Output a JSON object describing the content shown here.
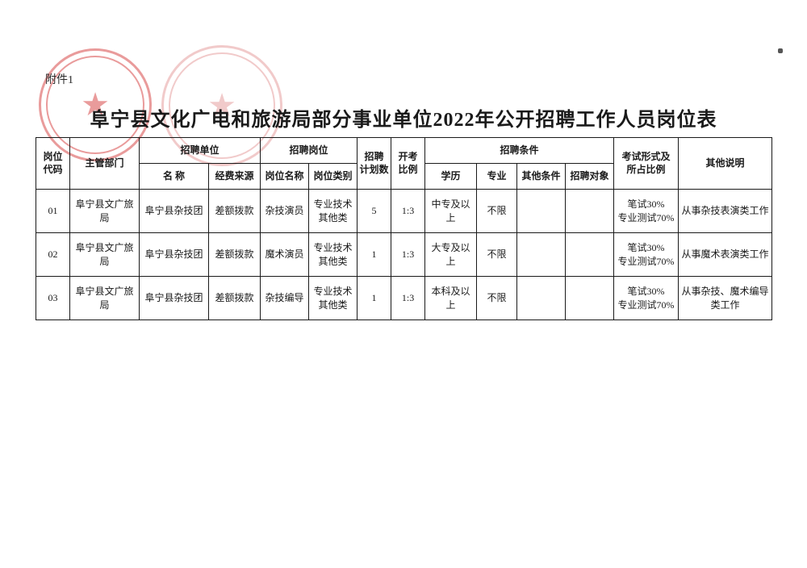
{
  "attachment_label": "附件1",
  "title": "阜宁县文化广电和旅游局部分事业单位2022年公开招聘工作人员岗位表",
  "header": {
    "code": "岗位\n代码",
    "dept": "主管部门",
    "unit_group": "招聘单位",
    "unit_name": "名  称",
    "unit_fund": "经费来源",
    "post_group": "招聘岗位",
    "post_name": "岗位名称",
    "post_type": "岗位类别",
    "plan": "招聘\n计划数",
    "ratio": "开考\n比例",
    "cond_group": "招聘条件",
    "edu": "学历",
    "major": "专业",
    "other_cond": "其他条件",
    "target": "招聘对象",
    "exam": "考试形式及\n所占比例",
    "remark": "其他说明"
  },
  "col_widths": {
    "code": 42,
    "dept": 86,
    "unit_name": 86,
    "unit_fund": 64,
    "post_name": 60,
    "post_type": 60,
    "plan": 42,
    "ratio": 42,
    "edu": 64,
    "major": 50,
    "other_cond": 60,
    "target": 60,
    "exam": 80,
    "remark": 116
  },
  "rows": [
    {
      "code": "01",
      "dept": "阜宁县文广旅局",
      "unit_name": "阜宁县杂技团",
      "unit_fund": "差额拨款",
      "post_name": "杂技演员",
      "post_type": "专业技术\n其他类",
      "plan": "5",
      "ratio": "1:3",
      "edu": "中专及以上",
      "major": "不限",
      "other_cond": "",
      "target": "",
      "exam": "笔试30%\n专业测试70%",
      "remark": "从事杂技表演类工作"
    },
    {
      "code": "02",
      "dept": "阜宁县文广旅局",
      "unit_name": "阜宁县杂技团",
      "unit_fund": "差额拨款",
      "post_name": "魔术演员",
      "post_type": "专业技术\n其他类",
      "plan": "1",
      "ratio": "1:3",
      "edu": "大专及以上",
      "major": "不限",
      "other_cond": "",
      "target": "",
      "exam": "笔试30%\n专业测试70%",
      "remark": "从事魔术表演类工作"
    },
    {
      "code": "03",
      "dept": "阜宁县文广旅局",
      "unit_name": "阜宁县杂技团",
      "unit_fund": "差额拨款",
      "post_name": "杂技编导",
      "post_type": "专业技术\n其他类",
      "plan": "1",
      "ratio": "1:3",
      "edu": "本科及以上",
      "major": "不限",
      "other_cond": "",
      "target": "",
      "exam": "笔试30%\n专业测试70%",
      "remark": "从事杂技、魔术编导类工作"
    }
  ],
  "style": {
    "row_height_header1": 32,
    "row_height_header2": 32,
    "row_height_body": 54,
    "border_color": "#1a1a1a",
    "font_body": 12,
    "font_title": 24
  }
}
